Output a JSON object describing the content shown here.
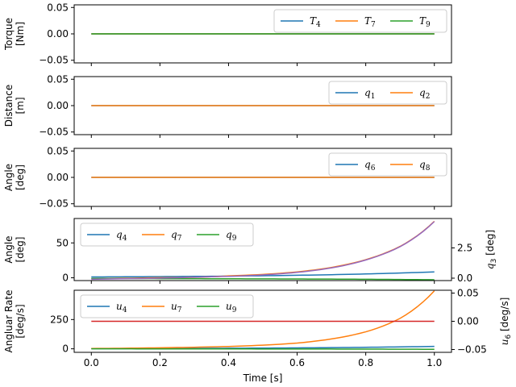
{
  "chart_data": {
    "type": "line",
    "xlabel": "Time [s]",
    "x_ticks": [
      "0.0",
      "0.2",
      "0.4",
      "0.6",
      "0.8",
      "1.0"
    ],
    "xlim": [
      -0.05,
      1.05
    ],
    "colors": {
      "C0": "#1f77b4",
      "C1": "#ff7f0e",
      "C2": "#2ca02c",
      "C3": "#d62728",
      "C4": "#9467bd"
    },
    "panels": [
      {
        "id": "torque",
        "ylabel": [
          "Torque",
          "[Nm]"
        ],
        "ylim": [
          -0.055,
          0.055
        ],
        "y_ticks": [
          {
            "v": 0.05,
            "t": "0.05"
          },
          {
            "v": 0.0,
            "t": "0.00"
          },
          {
            "v": -0.05,
            "t": "−0.05"
          }
        ],
        "legend": {
          "position": "upper right",
          "ncol": 3
        },
        "series": [
          {
            "name": "T",
            "sub": "4",
            "color": "#1f77b4",
            "x": [
              0,
              1
            ],
            "y": [
              0,
              0
            ]
          },
          {
            "name": "T",
            "sub": "7",
            "color": "#ff7f0e",
            "x": [
              0,
              1
            ],
            "y": [
              0,
              0
            ]
          },
          {
            "name": "T",
            "sub": "9",
            "color": "#2ca02c",
            "x": [
              0,
              1
            ],
            "y": [
              0,
              0
            ]
          }
        ]
      },
      {
        "id": "distance",
        "ylabel": [
          "Distance",
          "[m]"
        ],
        "ylim": [
          -0.055,
          0.055
        ],
        "y_ticks": [
          {
            "v": 0.05,
            "t": "0.05"
          },
          {
            "v": 0.0,
            "t": "0.00"
          },
          {
            "v": -0.05,
            "t": "−0.05"
          }
        ],
        "legend": {
          "position": "upper right",
          "ncol": 2
        },
        "series": [
          {
            "name": "q",
            "sub": "1",
            "color": "#1f77b4",
            "x": [
              0,
              1
            ],
            "y": [
              0,
              0
            ]
          },
          {
            "name": "q",
            "sub": "2",
            "color": "#ff7f0e",
            "x": [
              0,
              1
            ],
            "y": [
              0,
              0
            ]
          }
        ]
      },
      {
        "id": "angle1",
        "ylabel": [
          "Angle",
          "[deg]"
        ],
        "ylim": [
          -0.055,
          0.055
        ],
        "y_ticks": [
          {
            "v": 0.05,
            "t": "0.05"
          },
          {
            "v": 0.0,
            "t": "0.00"
          },
          {
            "v": -0.05,
            "t": "−0.05"
          }
        ],
        "legend": {
          "position": "upper right",
          "ncol": 2
        },
        "series": [
          {
            "name": "q",
            "sub": "6",
            "color": "#1f77b4",
            "x": [
              0,
              1
            ],
            "y": [
              0,
              0
            ]
          },
          {
            "name": "q",
            "sub": "8",
            "color": "#ff7f0e",
            "x": [
              0,
              1
            ],
            "y": [
              0,
              0
            ]
          }
        ]
      },
      {
        "id": "angle2",
        "ylabel": [
          "Angle",
          "[deg]"
        ],
        "ylim": [
          -4,
          85
        ],
        "y_ticks": [
          {
            "v": 50,
            "t": "50"
          },
          {
            "v": 0,
            "t": "0"
          }
        ],
        "legend": {
          "position": "upper left",
          "ncol": 3
        },
        "series": [
          {
            "name": "q",
            "sub": "4",
            "color": "#1f77b4",
            "x": [
              0,
              0.2,
              0.4,
              0.6,
              0.8,
              1.0
            ],
            "y": [
              1.2,
              1.7,
              2.4,
              3.6,
              5.5,
              8.5
            ]
          },
          {
            "name": "q",
            "sub": "7",
            "color": "#ff7f0e",
            "x": [
              0,
              0.2,
              0.4,
              0.6,
              0.8,
              0.9,
              1.0
            ],
            "y": [
              -1.4,
              0.2,
              2.8,
              8.5,
              26,
              45,
              81
            ]
          },
          {
            "name": "q",
            "sub": "9",
            "color": "#2ca02c",
            "x": [
              0,
              0.2,
              0.4,
              0.6,
              0.8,
              1.0
            ],
            "y": [
              -1.0,
              -1.2,
              -1.4,
              -1.7,
              -2.1,
              -2.8
            ]
          }
        ],
        "right_axis": {
          "label": "q",
          "label_sub": "3",
          "label_unit": "[deg]",
          "ylim": [
            -0.2,
            4.93
          ],
          "y_ticks": [
            {
              "v": 2.5,
              "t": "2.5"
            },
            {
              "v": 0.0,
              "t": "0.0"
            }
          ],
          "series": [
            {
              "color": "#9467bd",
              "x": [
                0,
                0.2,
                0.4,
                0.6,
                0.8,
                0.9,
                1.0
              ],
              "y": [
                -0.09,
                0.0,
                0.15,
                0.48,
                1.5,
                2.6,
                4.68
              ]
            }
          ]
        }
      },
      {
        "id": "rate",
        "ylabel": [
          "Angluar Rate",
          "[deg/s]"
        ],
        "ylim": [
          -30,
          500
        ],
        "y_ticks": [
          {
            "v": 250,
            "t": "250"
          },
          {
            "v": 0,
            "t": "0"
          }
        ],
        "legend": {
          "position": "upper left",
          "ncol": 3
        },
        "series": [
          {
            "name": "u",
            "sub": "4",
            "color": "#1f77b4",
            "x": [
              0,
              0.2,
              0.4,
              0.6,
              0.8,
              1.0
            ],
            "y": [
              1.5,
              3,
              5,
              8,
              13,
              21
            ]
          },
          {
            "name": "u",
            "sub": "7",
            "color": "#ff7f0e",
            "x": [
              0,
              0.2,
              0.4,
              0.6,
              0.8,
              0.9,
              1.0
            ],
            "y": [
              3,
              9,
              20,
              49,
              145,
              260,
              495
            ]
          },
          {
            "name": "u",
            "sub": "9",
            "color": "#2ca02c",
            "x": [
              0,
              0.2,
              0.4,
              0.6,
              0.8,
              1.0
            ],
            "y": [
              0,
              -0.5,
              -1,
              -1.5,
              -2.5,
              -4
            ]
          }
        ],
        "right_axis": {
          "label": "u",
          "label_sub": "6",
          "label_unit": "[deg/s]",
          "ylim": [
            -0.055,
            0.055
          ],
          "y_ticks": [
            {
              "v": 0.05,
              "t": "0.05"
            },
            {
              "v": 0.0,
              "t": "0.00"
            },
            {
              "v": -0.05,
              "t": "−0.05"
            }
          ],
          "series": [
            {
              "color": "#d62728",
              "x": [
                0,
                1
              ],
              "y": [
                0,
                0
              ]
            }
          ]
        }
      }
    ]
  }
}
